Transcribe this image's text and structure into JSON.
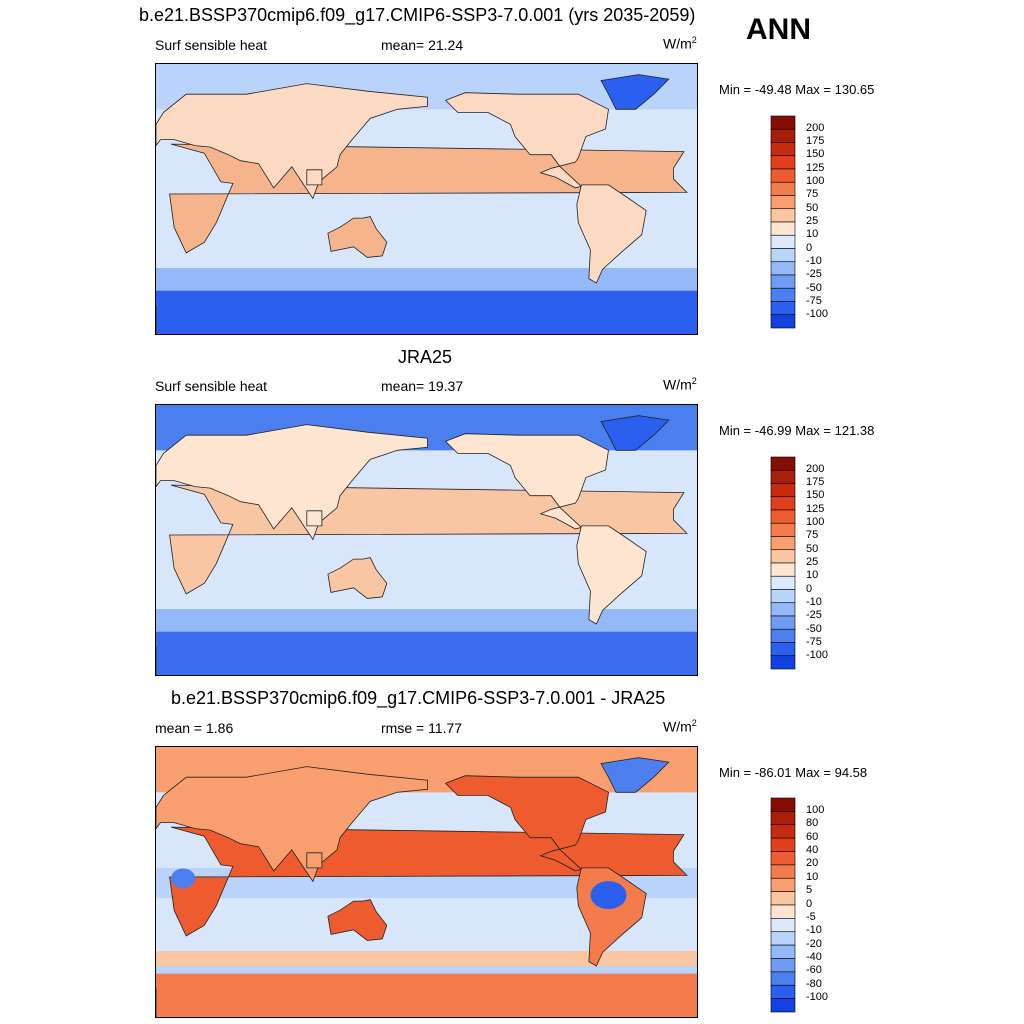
{
  "season": "ANN",
  "colors": {
    "positive_scale": [
      "#fde5d2",
      "#fbc7a2",
      "#f99f6f",
      "#f47b4b",
      "#ee5b2e",
      "#e33e1a",
      "#c72b0f",
      "#a91e0a",
      "#850e04"
    ],
    "negative_scale": [
      "#dde9fb",
      "#bad3fb",
      "#94b8f8",
      "#6f9cf2",
      "#4b7ff0",
      "#2a5ff0",
      "#1340e0",
      "#0a2bc0",
      "#000d88"
    ],
    "ocean_light": "#d7e6fb",
    "land_warm": "#fbd9c2"
  },
  "panels": [
    {
      "title": "b.e21.BSSP370cmip6.f09_g17.CMIP6-SSP3-7.0.001 (yrs 2035-2059)",
      "left_label": "Surf sensible heat",
      "center_label": "mean=  21.24",
      "units": "W/m",
      "units_sup": "2",
      "minmax": "Min = -49.48 Max = 130.65",
      "colorbar_labels": [
        "200",
        "175",
        "150",
        "125",
        "100",
        "75",
        "50",
        "25",
        "10",
        "0",
        "-10",
        "-25",
        "-50",
        "-75",
        "-100"
      ],
      "style": "model"
    },
    {
      "title": "JRA25",
      "left_label": "Surf sensible heat",
      "center_label": "mean=  19.37",
      "units": "W/m",
      "units_sup": "2",
      "minmax": "Min = -46.99 Max = 121.38",
      "colorbar_labels": [
        "200",
        "175",
        "150",
        "125",
        "100",
        "75",
        "50",
        "25",
        "10",
        "0",
        "-10",
        "-25",
        "-50",
        "-75",
        "-100"
      ],
      "style": "obs"
    },
    {
      "title": "b.e21.BSSP370cmip6.f09_g17.CMIP6-SSP3-7.0.001 - JRA25",
      "left_label": "mean =   1.86",
      "center_label": "rmse =  11.77",
      "units": "W/m",
      "units_sup": "2",
      "minmax": "Min = -86.01 Max =  94.58",
      "colorbar_labels": [
        "100",
        "80",
        "60",
        "40",
        "20",
        "10",
        "5",
        "0",
        "-5",
        "-10",
        "-20",
        "-40",
        "-60",
        "-80",
        "-100"
      ],
      "style": "diff"
    }
  ],
  "chart_data": [
    {
      "type": "heatmap",
      "title": "b.e21.BSSP370cmip6.f09_g17.CMIP6-SSP3-7.0.001 (yrs 2035-2059)",
      "variable": "Surf sensible heat",
      "units": "W/m2",
      "mean": 21.24,
      "min": -49.48,
      "max": 130.65,
      "levels": [
        -100,
        -75,
        -50,
        -25,
        -10,
        0,
        10,
        25,
        50,
        75,
        100,
        125,
        150,
        175,
        200
      ]
    },
    {
      "type": "heatmap",
      "title": "JRA25",
      "variable": "Surf sensible heat",
      "units": "W/m2",
      "mean": 19.37,
      "min": -46.99,
      "max": 121.38,
      "levels": [
        -100,
        -75,
        -50,
        -25,
        -10,
        0,
        10,
        25,
        50,
        75,
        100,
        125,
        150,
        175,
        200
      ]
    },
    {
      "type": "heatmap",
      "title": "b.e21.BSSP370cmip6.f09_g17.CMIP6-SSP3-7.0.001 - JRA25",
      "units": "W/m2",
      "mean": 1.86,
      "rmse": 11.77,
      "min": -86.01,
      "max": 94.58,
      "levels": [
        -100,
        -80,
        -60,
        -40,
        -20,
        -10,
        -5,
        0,
        5,
        10,
        20,
        40,
        60,
        80,
        100
      ]
    }
  ]
}
